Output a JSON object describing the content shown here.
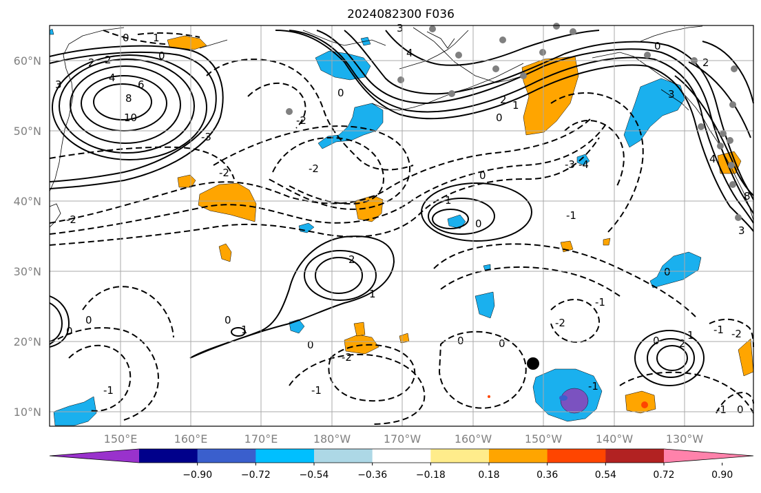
{
  "title": "2024082300 F036",
  "lat_labels": [
    "10°N",
    "20°N",
    "30°N",
    "40°N",
    "50°N",
    "60°N"
  ],
  "lon_labels": [
    "150°E",
    "160°E",
    "170°E",
    "180°W",
    "170°W",
    "160°W",
    "150°W",
    "140°W",
    "130°W"
  ],
  "contour_labels": [
    "0",
    "1",
    "2",
    "3",
    "4",
    "6",
    "8",
    "10",
    "-1",
    "-2",
    "-3",
    "-4"
  ],
  "colorbar": {
    "ticks": [
      "−0.90",
      "−0.72",
      "−0.54",
      "−0.36",
      "−0.18",
      "0.18",
      "0.36",
      "0.54",
      "0.72",
      "0.90"
    ],
    "colors": [
      "#9932cc",
      "#00008b",
      "#3a5fcd",
      "#00bfff",
      "#add8e6",
      "#ffffff",
      "#ffec8b",
      "#ffa500",
      "#ff4500",
      "#b22222",
      "#ff82ab"
    ]
  },
  "shading_colors": {
    "blue": "#1ab0ee",
    "orange": "#ffa500",
    "purple": "#9b5fc0",
    "red": "#ff4500"
  }
}
